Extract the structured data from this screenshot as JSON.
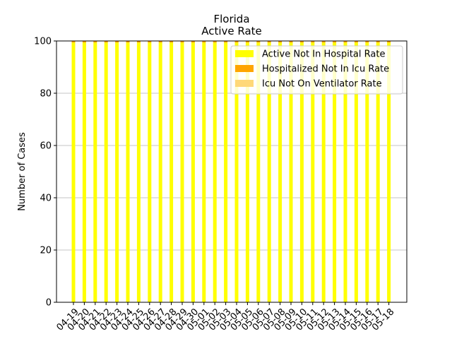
{
  "chart_data": {
    "type": "bar",
    "title": "Florida",
    "subtitle": "Active Rate",
    "xlabel": "",
    "ylabel": "Number of Cases",
    "ylim": [
      0,
      100
    ],
    "yticks": [
      0,
      20,
      40,
      60,
      80,
      100
    ],
    "grid": "horizontal",
    "legend_position": "top-right",
    "stacked": true,
    "categories": [
      "04-19",
      "04-20",
      "04-21",
      "04-22",
      "04-23",
      "04-24",
      "04-25",
      "04-26",
      "04-27",
      "04-28",
      "04-29",
      "04-30",
      "05-01",
      "05-02",
      "05-03",
      "05-04",
      "05-05",
      "05-06",
      "05-07",
      "05-08",
      "05-09",
      "05-10",
      "05-11",
      "05-12",
      "05-13",
      "05-14",
      "05-15",
      "05-16",
      "05-17",
      "05-18"
    ],
    "series": [
      {
        "name": "Active Not In Hospital Rate",
        "color": "#ffff00",
        "values": [
          99.4,
          99.4,
          99.4,
          99.4,
          99.4,
          99.4,
          99.4,
          99.4,
          99.4,
          99.4,
          99.4,
          99.4,
          99.4,
          99.4,
          99.4,
          99.4,
          99.4,
          99.4,
          99.4,
          99.4,
          99.4,
          99.4,
          99.4,
          99.4,
          99.4,
          99.4,
          99.4,
          99.4,
          99.4,
          99.4
        ]
      },
      {
        "name": "Hospitalized Not In Icu Rate",
        "color": "#ffa500",
        "values": [
          0.5,
          0.5,
          0.5,
          0.5,
          0.5,
          0.5,
          0.5,
          0.5,
          0.5,
          0.5,
          0.5,
          0.5,
          0.5,
          0.5,
          0.5,
          0.5,
          0.5,
          0.5,
          0.5,
          0.5,
          0.5,
          0.5,
          0.5,
          0.5,
          0.5,
          0.5,
          0.5,
          0.5,
          0.5,
          0.5
        ]
      },
      {
        "name": "Icu Not On Ventilator Rate",
        "color": "#ffd878",
        "values": [
          0.1,
          0.1,
          0.1,
          0.1,
          0.1,
          0.1,
          0.1,
          0.1,
          0.1,
          0.1,
          0.1,
          0.1,
          0.1,
          0.1,
          0.1,
          0.1,
          0.1,
          0.1,
          0.1,
          0.1,
          0.1,
          0.1,
          0.1,
          0.1,
          0.1,
          0.1,
          0.1,
          0.1,
          0.1,
          0.1
        ]
      }
    ]
  }
}
